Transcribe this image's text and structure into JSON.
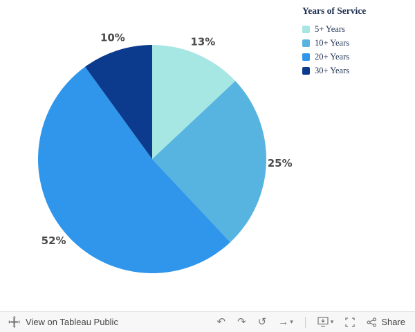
{
  "chart_data": {
    "type": "pie",
    "start": "top",
    "direction": "clockwise",
    "legend": {
      "title": "Years of Service",
      "position": "top-right"
    },
    "slices": [
      {
        "label": "5+ Years",
        "value": 13,
        "display": "13%",
        "color": "#A6E7E3"
      },
      {
        "label": "10+ Years",
        "value": 25,
        "display": "25%",
        "color": "#57B4E0"
      },
      {
        "label": "20+ Years",
        "value": 52,
        "display": "52%",
        "color": "#2F96EB"
      },
      {
        "label": "30+ Years",
        "value": 10,
        "display": "10%",
        "color": "#0C3B8D"
      }
    ],
    "label_color": "#4A4A4A",
    "legend_text_color": "#1E3050"
  },
  "toolbar": {
    "view_on_label": "View on Tableau Public",
    "share_label": "Share",
    "icons": {
      "undo": "↶",
      "redo": "↷",
      "revert": "↺",
      "forward": "→",
      "caret": "▾"
    }
  }
}
